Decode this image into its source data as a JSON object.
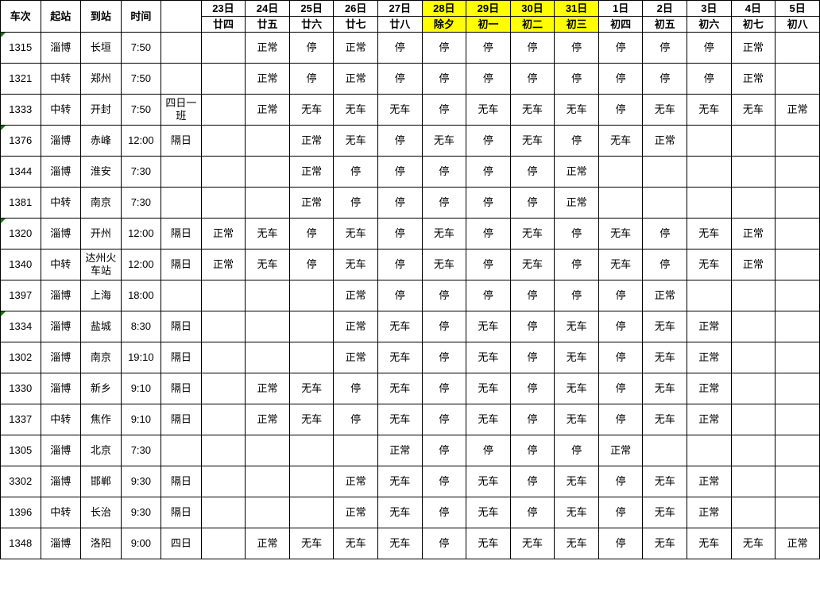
{
  "columns": {
    "fixed": [
      "车次",
      "起站",
      "到站",
      "时间",
      ""
    ],
    "days": [
      "23日",
      "24日",
      "25日",
      "26日",
      "27日",
      "28日",
      "29日",
      "30日",
      "31日",
      "1日",
      "2日",
      "3日",
      "4日",
      "5日"
    ],
    "lunar": [
      "廿四",
      "廿五",
      "廿六",
      "廿七",
      "廿八",
      "除夕",
      "初一",
      "初二",
      "初三",
      "初四",
      "初五",
      "初六",
      "初七",
      "初八"
    ],
    "highlight_idx": [
      5,
      6,
      7,
      8
    ]
  },
  "rows": [
    {
      "t": true,
      "no": "1315",
      "from": "淄博",
      "to": "长垣",
      "time": "7:50",
      "note": "",
      "cells": [
        "",
        "正常",
        "停",
        "正常",
        "停",
        "停",
        "停",
        "停",
        "停",
        "停",
        "停",
        "停",
        "正常",
        ""
      ]
    },
    {
      "t": false,
      "no": "1321",
      "from": "中转",
      "to": "郑州",
      "time": "7:50",
      "note": "",
      "cells": [
        "",
        "正常",
        "停",
        "正常",
        "停",
        "停",
        "停",
        "停",
        "停",
        "停",
        "停",
        "停",
        "正常",
        ""
      ]
    },
    {
      "t": false,
      "no": "1333",
      "from": "中转",
      "to": "开封",
      "time": "7:50",
      "note": "四日一班",
      "cells": [
        "",
        "正常",
        "无车",
        "无车",
        "无车",
        "停",
        "无车",
        "无车",
        "无车",
        "停",
        "无车",
        "无车",
        "无车",
        "正常"
      ]
    },
    {
      "t": true,
      "no": "1376",
      "from": "淄博",
      "to": "赤峰",
      "time": "12:00",
      "note": "隔日",
      "cells": [
        "",
        "",
        "正常",
        "无车",
        "停",
        "无车",
        "停",
        "无车",
        "停",
        "无车",
        "正常",
        "",
        "",
        ""
      ]
    },
    {
      "t": false,
      "no": "1344",
      "from": "淄博",
      "to": "淮安",
      "time": "7:30",
      "note": "",
      "cells": [
        "",
        "",
        "正常",
        "停",
        "停",
        "停",
        "停",
        "停",
        "正常",
        "",
        "",
        "",
        "",
        ""
      ]
    },
    {
      "t": false,
      "no": "1381",
      "from": "中转",
      "to": "南京",
      "time": "7:30",
      "note": "",
      "cells": [
        "",
        "",
        "正常",
        "停",
        "停",
        "停",
        "停",
        "停",
        "正常",
        "",
        "",
        "",
        "",
        ""
      ]
    },
    {
      "t": true,
      "no": "1320",
      "from": "淄博",
      "to": "开州",
      "time": "12:00",
      "note": "隔日",
      "cells": [
        "正常",
        "无车",
        "停",
        "无车",
        "停",
        "无车",
        "停",
        "无车",
        "停",
        "无车",
        "停",
        "无车",
        "正常",
        ""
      ]
    },
    {
      "t": false,
      "no": "1340",
      "from": "中转",
      "to": "达州火车站",
      "time": "12:00",
      "note": "隔日",
      "cells": [
        "正常",
        "无车",
        "停",
        "无车",
        "停",
        "无车",
        "停",
        "无车",
        "停",
        "无车",
        "停",
        "无车",
        "正常",
        ""
      ]
    },
    {
      "t": false,
      "no": "1397",
      "from": "淄博",
      "to": "上海",
      "time": "18:00",
      "note": "",
      "cells": [
        "",
        "",
        "",
        "正常",
        "停",
        "停",
        "停",
        "停",
        "停",
        "停",
        "正常",
        "",
        "",
        ""
      ]
    },
    {
      "t": true,
      "no": "1334",
      "from": "淄博",
      "to": "盐城",
      "time": "8:30",
      "note": "隔日",
      "cells": [
        "",
        "",
        "",
        "正常",
        "无车",
        "停",
        "无车",
        "停",
        "无车",
        "停",
        "无车",
        "正常",
        "",
        ""
      ]
    },
    {
      "t": false,
      "no": "1302",
      "from": "淄博",
      "to": "南京",
      "time": "19:10",
      "note": "隔日",
      "cells": [
        "",
        "",
        "",
        "正常",
        "无车",
        "停",
        "无车",
        "停",
        "无车",
        "停",
        "无车",
        "正常",
        "",
        ""
      ]
    },
    {
      "t": false,
      "no": "1330",
      "from": "淄博",
      "to": "新乡",
      "time": "9:10",
      "note": "隔日",
      "cells": [
        "",
        "正常",
        "无车",
        "停",
        "无车",
        "停",
        "无车",
        "停",
        "无车",
        "停",
        "无车",
        "正常",
        "",
        ""
      ]
    },
    {
      "t": false,
      "no": "1337",
      "from": "中转",
      "to": "焦作",
      "time": "9:10",
      "note": "隔日",
      "cells": [
        "",
        "正常",
        "无车",
        "停",
        "无车",
        "停",
        "无车",
        "停",
        "无车",
        "停",
        "无车",
        "正常",
        "",
        ""
      ]
    },
    {
      "t": false,
      "no": "1305",
      "from": "淄博",
      "to": "北京",
      "time": "7:30",
      "note": "",
      "cells": [
        "",
        "",
        "",
        "",
        "正常",
        "停",
        "停",
        "停",
        "停",
        "正常",
        "",
        "",
        "",
        ""
      ]
    },
    {
      "t": false,
      "no": "3302",
      "from": "淄博",
      "to": "邯郸",
      "time": "9:30",
      "note": "隔日",
      "cells": [
        "",
        "",
        "",
        "正常",
        "无车",
        "停",
        "无车",
        "停",
        "无车",
        "停",
        "无车",
        "正常",
        "",
        ""
      ]
    },
    {
      "t": false,
      "no": "1396",
      "from": "中转",
      "to": "长治",
      "time": "9:30",
      "note": "隔日",
      "cells": [
        "",
        "",
        "",
        "正常",
        "无车",
        "停",
        "无车",
        "停",
        "无车",
        "停",
        "无车",
        "正常",
        "",
        ""
      ]
    },
    {
      "t": false,
      "no": "1348",
      "from": "淄博",
      "to": "洛阳",
      "time": "9:00",
      "note": "四日",
      "cells": [
        "",
        "正常",
        "无车",
        "无车",
        "无车",
        "停",
        "无车",
        "无车",
        "无车",
        "停",
        "无车",
        "无车",
        "无车",
        "正常"
      ]
    }
  ]
}
